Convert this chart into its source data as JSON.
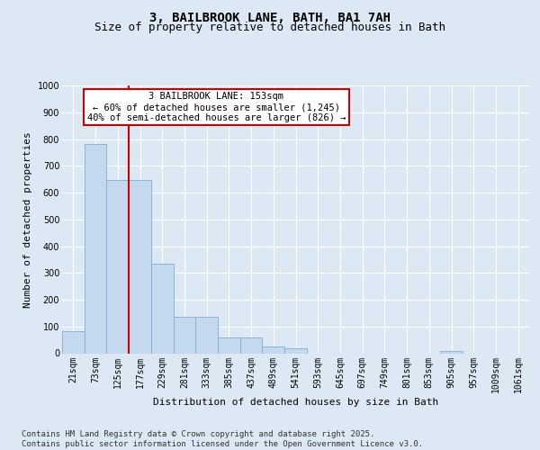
{
  "title_line1": "3, BAILBROOK LANE, BATH, BA1 7AH",
  "title_line2": "Size of property relative to detached houses in Bath",
  "xlabel": "Distribution of detached houses by size in Bath",
  "ylabel": "Number of detached properties",
  "categories": [
    "21sqm",
    "73sqm",
    "125sqm",
    "177sqm",
    "229sqm",
    "281sqm",
    "333sqm",
    "385sqm",
    "437sqm",
    "489sqm",
    "541sqm",
    "593sqm",
    "645sqm",
    "697sqm",
    "749sqm",
    "801sqm",
    "853sqm",
    "905sqm",
    "957sqm",
    "1009sqm",
    "1061sqm"
  ],
  "values": [
    83,
    783,
    648,
    648,
    335,
    135,
    135,
    60,
    60,
    25,
    18,
    0,
    0,
    0,
    0,
    0,
    0,
    8,
    0,
    0,
    0
  ],
  "bar_color": "#c5d9ee",
  "bar_edge_color": "#7bafd4",
  "vline_x": 2.5,
  "vline_color": "#cc0000",
  "annotation_text": "3 BAILBROOK LANE: 153sqm\n← 60% of detached houses are smaller (1,245)\n40% of semi-detached houses are larger (826) →",
  "annotation_box_facecolor": "#ffffff",
  "annotation_box_edgecolor": "#cc0000",
  "ylim": [
    0,
    1000
  ],
  "yticks": [
    0,
    100,
    200,
    300,
    400,
    500,
    600,
    700,
    800,
    900,
    1000
  ],
  "background_color": "#dce9f5",
  "plot_bg_color": "#dce9f5",
  "grid_color": "#ffffff",
  "footer_text": "Contains HM Land Registry data © Crown copyright and database right 2025.\nContains public sector information licensed under the Open Government Licence v3.0.",
  "title_fontsize": 10,
  "subtitle_fontsize": 9,
  "axis_label_fontsize": 8,
  "tick_fontsize": 7,
  "annotation_fontsize": 7.5,
  "footer_fontsize": 6.5
}
